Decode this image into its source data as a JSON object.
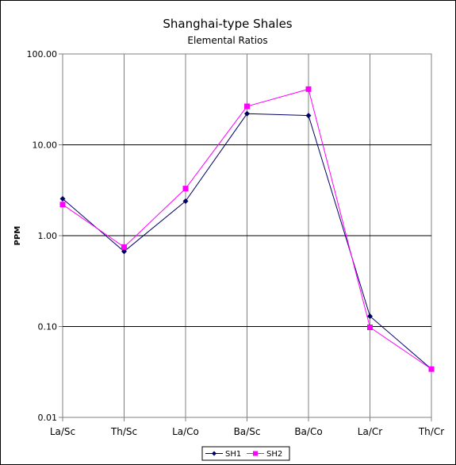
{
  "chart_data": {
    "type": "line",
    "title": "Shanghai-type Shales",
    "subtitle": "Elemental Ratios",
    "xlabel": "",
    "ylabel": "PPM",
    "y_scale": "log",
    "ylim": [
      0.01,
      100
    ],
    "y_ticks": [
      "0.01",
      "0.10",
      "1.00",
      "10.00",
      "100.00"
    ],
    "categories": [
      "La/Sc",
      "Th/Sc",
      "La/Co",
      "Ba/Sc",
      "Ba/Co",
      "La/Cr",
      "Th/Cr"
    ],
    "grid": true,
    "legend_placement": "bottom",
    "series": [
      {
        "name": "SH1",
        "color": "#000066",
        "marker": "diamond",
        "values": [
          2.55,
          0.67,
          2.4,
          22,
          21,
          0.13,
          0.034
        ]
      },
      {
        "name": "SH2",
        "color": "#ff00ff",
        "marker": "square",
        "values": [
          2.2,
          0.75,
          3.3,
          26.5,
          41,
          0.098,
          0.034
        ]
      }
    ]
  }
}
